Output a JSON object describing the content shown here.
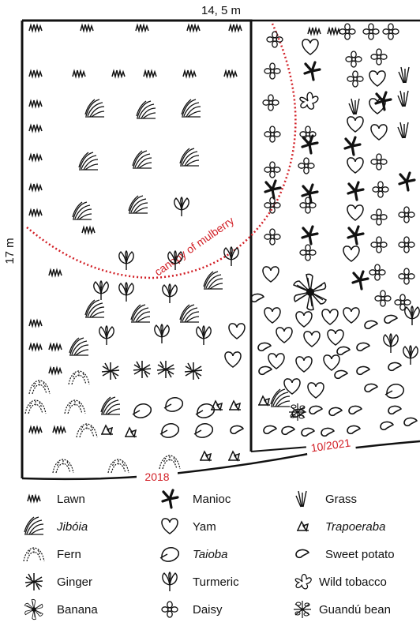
{
  "plan": {
    "width_label": "14, 5 m",
    "height_label": "17 m",
    "canopy_label": "canopy of mulberry",
    "year_left": "2018",
    "year_right": "10/2021"
  },
  "legend": {
    "items": [
      {
        "label": "Lawn",
        "icon": "lawn-icon",
        "italic": false
      },
      {
        "label": "Jibóia",
        "icon": "jiboia-icon",
        "italic": true
      },
      {
        "label": "Fern",
        "icon": "fern-icon",
        "italic": false
      },
      {
        "label": "Ginger",
        "icon": "ginger-icon",
        "italic": false
      },
      {
        "label": "Banana",
        "icon": "banana-icon",
        "italic": false
      },
      {
        "label": "Manioc",
        "icon": "manioc-icon",
        "italic": false
      },
      {
        "label": "Yam",
        "icon": "yam-icon",
        "italic": false
      },
      {
        "label": "Taioba",
        "icon": "taioba-icon",
        "italic": true
      },
      {
        "label": "Turmeric",
        "icon": "turmeric-icon",
        "italic": false
      },
      {
        "label": "Daisy",
        "icon": "daisy-icon",
        "italic": false
      },
      {
        "label": "Grass",
        "icon": "grass-icon",
        "italic": false
      },
      {
        "label": "Trapoeraba",
        "icon": "trapoeraba-icon",
        "italic": true
      },
      {
        "label": "Sweet potato",
        "icon": "sweet-potato-icon",
        "italic": false
      },
      {
        "label": "Wild tobacco",
        "icon": "wild-tobacco-icon",
        "italic": false
      },
      {
        "label": "Guandú bean",
        "icon": "guandu-bean-icon",
        "italic": false
      }
    ]
  },
  "colors": {
    "ink": "#111111",
    "accent_red": "#d21f26"
  }
}
